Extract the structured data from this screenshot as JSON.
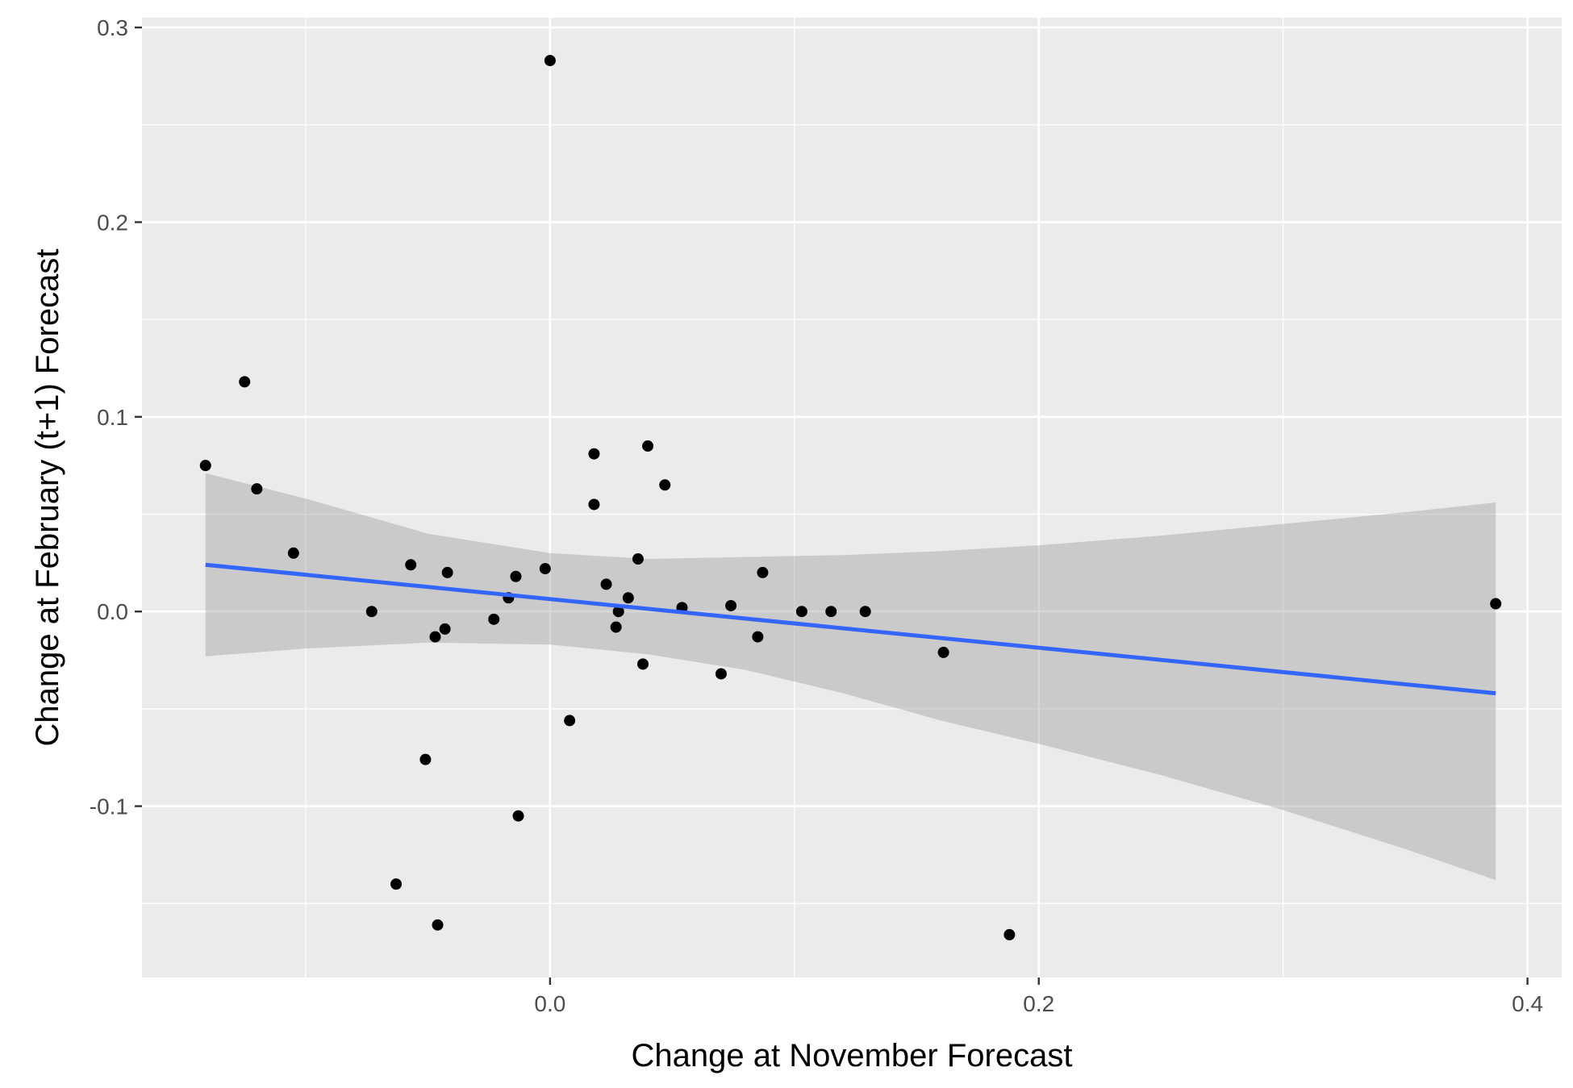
{
  "chart_data": {
    "type": "scatter",
    "title": "",
    "xlabel": "Change at November Forecast",
    "ylabel": "Change at February (t+1) Forecast",
    "xlim": [
      -0.167,
      0.414
    ],
    "ylim": [
      -0.188,
      0.305
    ],
    "x_ticks": [
      0.0,
      0.2,
      0.4
    ],
    "x_tick_labels": [
      "0.0",
      "0.2",
      "0.4"
    ],
    "y_ticks": [
      -0.1,
      0.0,
      0.1,
      0.2,
      0.3
    ],
    "y_tick_labels": [
      "-0.1",
      "0.0",
      "0.1",
      "0.2",
      "0.3"
    ],
    "grid": true,
    "points": [
      {
        "x": -0.141,
        "y": 0.075
      },
      {
        "x": -0.125,
        "y": 0.118
      },
      {
        "x": -0.12,
        "y": 0.063
      },
      {
        "x": -0.105,
        "y": 0.03
      },
      {
        "x": -0.073,
        "y": 0.0
      },
      {
        "x": -0.063,
        "y": -0.14
      },
      {
        "x": -0.057,
        "y": 0.024
      },
      {
        "x": -0.051,
        "y": -0.076
      },
      {
        "x": -0.047,
        "y": -0.013
      },
      {
        "x": -0.046,
        "y": -0.161
      },
      {
        "x": -0.043,
        "y": -0.009
      },
      {
        "x": -0.042,
        "y": 0.02
      },
      {
        "x": -0.023,
        "y": -0.004
      },
      {
        "x": -0.017,
        "y": 0.007
      },
      {
        "x": -0.014,
        "y": 0.018
      },
      {
        "x": -0.013,
        "y": -0.105
      },
      {
        "x": -0.002,
        "y": 0.022
      },
      {
        "x": 0.0,
        "y": 0.283
      },
      {
        "x": 0.008,
        "y": -0.056
      },
      {
        "x": 0.018,
        "y": 0.081
      },
      {
        "x": 0.018,
        "y": 0.055
      },
      {
        "x": 0.023,
        "y": 0.014
      },
      {
        "x": 0.027,
        "y": -0.008
      },
      {
        "x": 0.028,
        "y": 0.0
      },
      {
        "x": 0.032,
        "y": 0.007
      },
      {
        "x": 0.036,
        "y": 0.027
      },
      {
        "x": 0.038,
        "y": -0.027
      },
      {
        "x": 0.04,
        "y": 0.085
      },
      {
        "x": 0.047,
        "y": 0.065
      },
      {
        "x": 0.054,
        "y": 0.002
      },
      {
        "x": 0.07,
        "y": -0.032
      },
      {
        "x": 0.074,
        "y": 0.003
      },
      {
        "x": 0.085,
        "y": -0.013
      },
      {
        "x": 0.087,
        "y": 0.02
      },
      {
        "x": 0.103,
        "y": 0.0
      },
      {
        "x": 0.115,
        "y": 0.0
      },
      {
        "x": 0.129,
        "y": 0.0
      },
      {
        "x": 0.161,
        "y": -0.021
      },
      {
        "x": 0.188,
        "y": -0.166
      },
      {
        "x": 0.387,
        "y": 0.004
      }
    ],
    "smooth": {
      "method": "linear",
      "x": [
        -0.141,
        0.387
      ],
      "y": [
        0.024,
        -0.042
      ],
      "band": [
        {
          "x": -0.141,
          "lo": -0.023,
          "hi": 0.071
        },
        {
          "x": -0.1,
          "lo": -0.019,
          "hi": 0.058
        },
        {
          "x": -0.05,
          "lo": -0.016,
          "hi": 0.04
        },
        {
          "x": 0.0,
          "lo": -0.017,
          "hi": 0.03
        },
        {
          "x": 0.04,
          "lo": -0.022,
          "hi": 0.027
        },
        {
          "x": 0.08,
          "lo": -0.03,
          "hi": 0.028
        },
        {
          "x": 0.12,
          "lo": -0.042,
          "hi": 0.029
        },
        {
          "x": 0.16,
          "lo": -0.056,
          "hi": 0.031
        },
        {
          "x": 0.2,
          "lo": -0.068,
          "hi": 0.034
        },
        {
          "x": 0.25,
          "lo": -0.084,
          "hi": 0.039
        },
        {
          "x": 0.3,
          "lo": -0.102,
          "hi": 0.045
        },
        {
          "x": 0.35,
          "lo": -0.122,
          "hi": 0.051
        },
        {
          "x": 0.387,
          "lo": -0.138,
          "hi": 0.056
        }
      ]
    },
    "colors": {
      "panel": "#ebebeb",
      "grid": "#ffffff",
      "point": "#000000",
      "line": "#3366ff",
      "band": "#999999"
    }
  }
}
